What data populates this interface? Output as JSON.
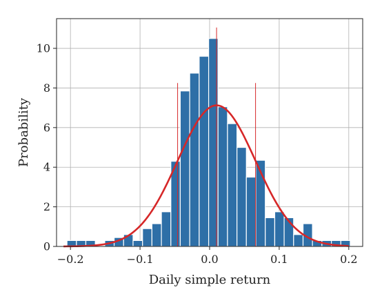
{
  "chart_data": {
    "type": "bar",
    "title": "",
    "xlabel": "Daily simple return",
    "ylabel": "Probability",
    "xlim": [
      -0.22,
      0.22
    ],
    "ylim": [
      0,
      11.5
    ],
    "grid": true,
    "xticks": [
      -0.2,
      -0.1,
      0.0,
      0.1,
      0.2
    ],
    "xtick_labels": [
      "−0.2",
      "−0.1",
      "0.0",
      "0.1",
      "0.2"
    ],
    "yticks": [
      0,
      2,
      4,
      6,
      8,
      10
    ],
    "ytick_labels": [
      "0",
      "2",
      "4",
      "6",
      "8",
      "10"
    ],
    "histogram": {
      "bin_edges": [
        -0.205,
        -0.1914,
        -0.1779,
        -0.1643,
        -0.1507,
        -0.1372,
        -0.1236,
        -0.11,
        -0.0964,
        -0.0829,
        -0.0693,
        -0.0557,
        -0.0422,
        -0.0286,
        -0.015,
        -0.0014,
        0.0121,
        0.0257,
        0.0393,
        0.0528,
        0.0664,
        0.08,
        0.0936,
        0.1071,
        0.1207,
        0.1343,
        0.1478,
        0.1614,
        0.175,
        0.1886,
        0.2021
      ],
      "values": [
        0.3,
        0.3,
        0.3,
        0.0,
        0.3,
        0.45,
        0.6,
        0.3,
        0.9,
        1.15,
        1.75,
        4.3,
        7.85,
        8.75,
        9.6,
        10.5,
        7.05,
        6.2,
        5.0,
        3.5,
        4.35,
        1.45,
        1.75,
        1.45,
        0.6,
        1.15,
        0.3,
        0.3,
        0.3,
        0.3
      ],
      "color": "#2e6fa7"
    },
    "curve": {
      "type": "normal-pdf",
      "mean": 0.01,
      "std": 0.056,
      "x_range": [
        -0.21,
        0.2
      ],
      "color": "#d62728"
    },
    "vlines": [
      {
        "x": -0.046,
        "ymax": 8.25,
        "color": "#d62728"
      },
      {
        "x": 0.01,
        "ymax": 11.05,
        "color": "#d62728"
      },
      {
        "x": 0.066,
        "ymax": 8.25,
        "color": "#d62728"
      }
    ]
  }
}
